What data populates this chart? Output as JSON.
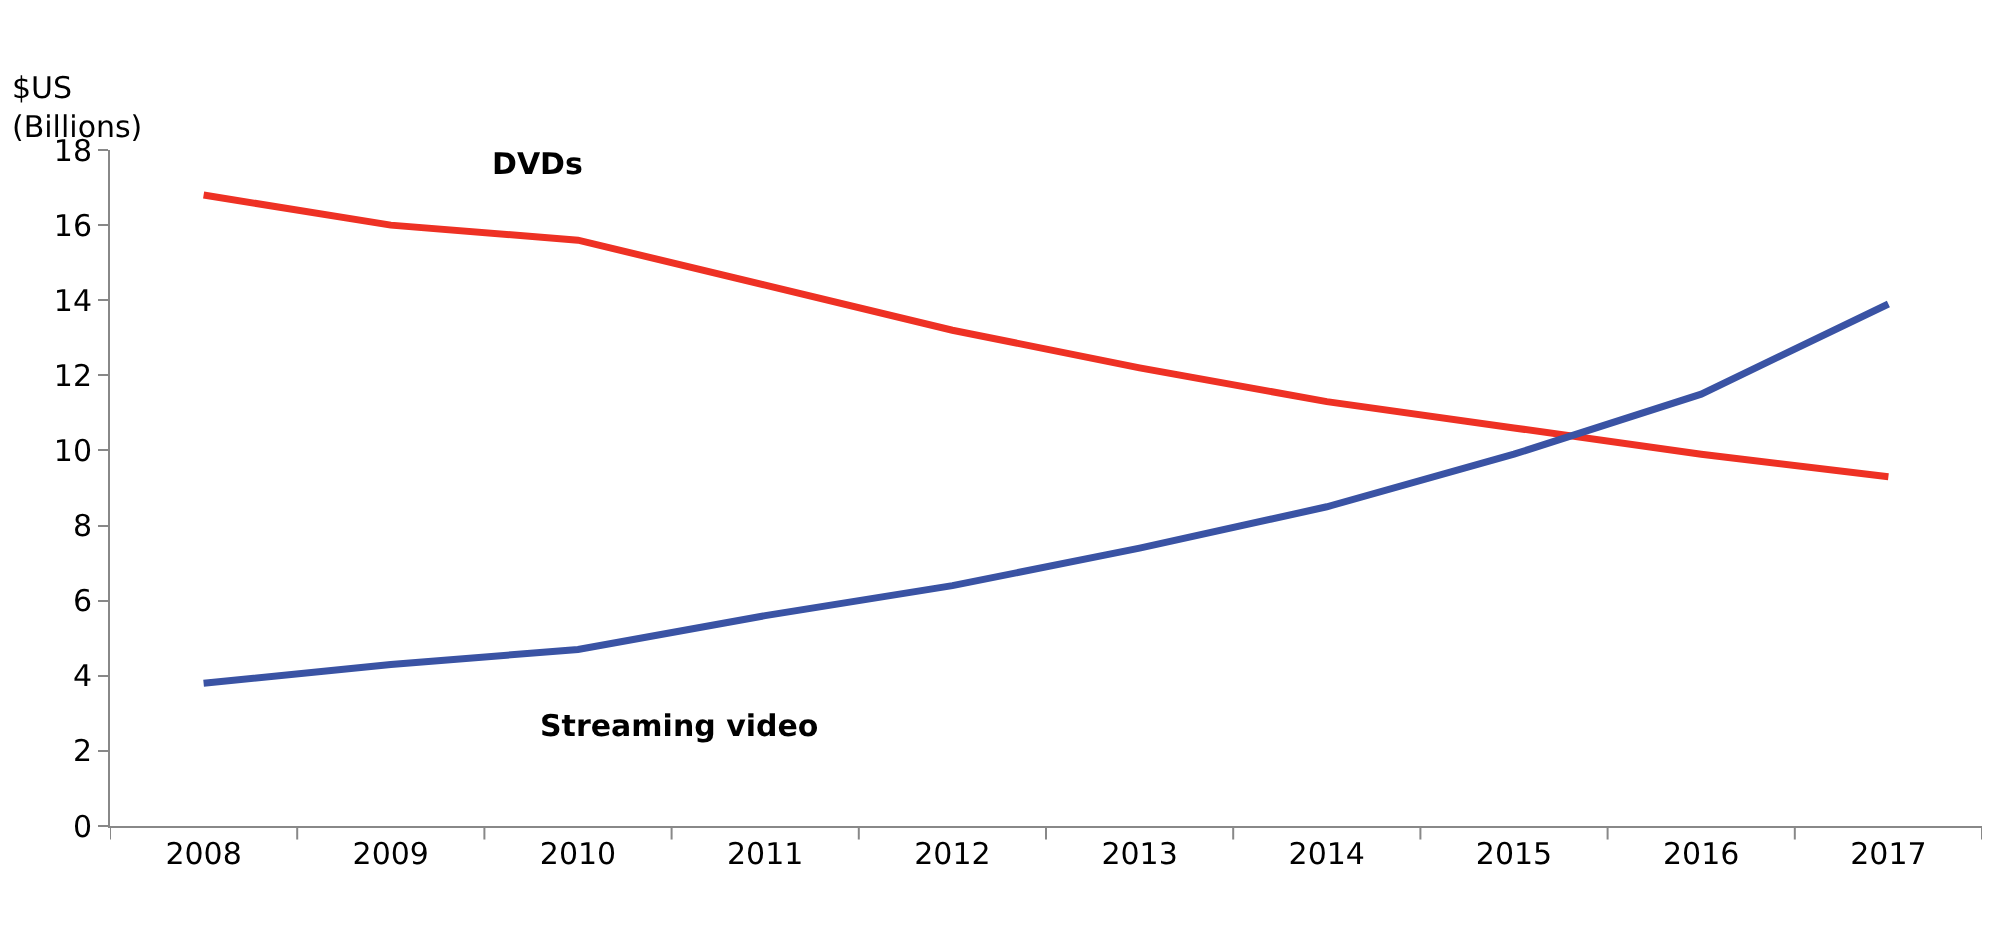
{
  "chart_data": {
    "type": "line",
    "ylabel": "$US\n(Billions)",
    "categories": [
      "2008",
      "2009",
      "2010",
      "2011",
      "2012",
      "2013",
      "2014",
      "2015",
      "2016",
      "2017"
    ],
    "series": [
      {
        "name": "DVDs",
        "color": "#ee3124",
        "values": [
          16.8,
          16.0,
          15.6,
          14.4,
          13.2,
          12.2,
          11.3,
          10.6,
          9.9,
          9.3
        ]
      },
      {
        "name": "Streaming video",
        "color": "#3a53a4",
        "values": [
          3.8,
          4.3,
          4.7,
          5.6,
          6.4,
          7.4,
          8.5,
          9.9,
          11.5,
          13.9
        ]
      }
    ],
    "ylim": [
      0,
      18
    ],
    "yticks": [
      0,
      2,
      4,
      6,
      8,
      10,
      12,
      14,
      16,
      18
    ],
    "legend": false,
    "marker": "none",
    "line_style": "solid"
  }
}
